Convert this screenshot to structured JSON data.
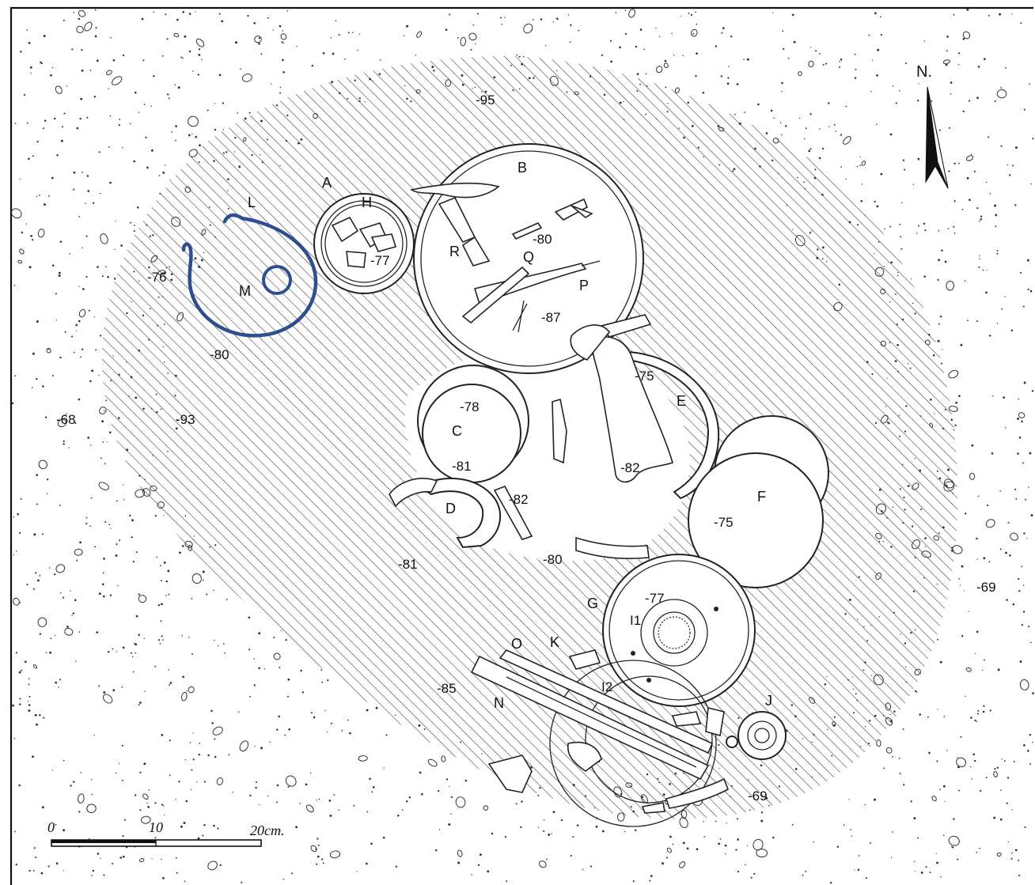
{
  "north": {
    "label": "N."
  },
  "scale": {
    "ticks": [
      "0",
      "10",
      "20cm."
    ]
  },
  "depths": {
    "d95": "-95",
    "d76": "-76",
    "d80_west": "-80",
    "d68": "-68",
    "d93": "-93",
    "d77_h": "-77",
    "d80_b": "-80",
    "d87": "-87",
    "d75_e": "-75",
    "d78": "-78",
    "d81_c": "-81",
    "d82_center": "-82",
    "d82_d": "-82",
    "d75_f": "-75",
    "d81_sw": "-81",
    "d80_s": "-80",
    "d77_g": "-77",
    "d69_east": "-69",
    "d85": "-85",
    "d69_se": "-69"
  },
  "letters": {
    "A": "A",
    "B": "B",
    "C": "C",
    "D": "D",
    "E": "E",
    "F": "F",
    "G": "G",
    "H": "H",
    "I1": "I1",
    "I2": "I2",
    "J": "J",
    "K": "K",
    "L": "L",
    "M": "M",
    "N": "N",
    "O": "O",
    "P": "P",
    "Q": "Q",
    "R": "R"
  },
  "colors": {
    "ink": "#222222",
    "bronze": "#2e4f8f",
    "paper": "#ffffff"
  }
}
